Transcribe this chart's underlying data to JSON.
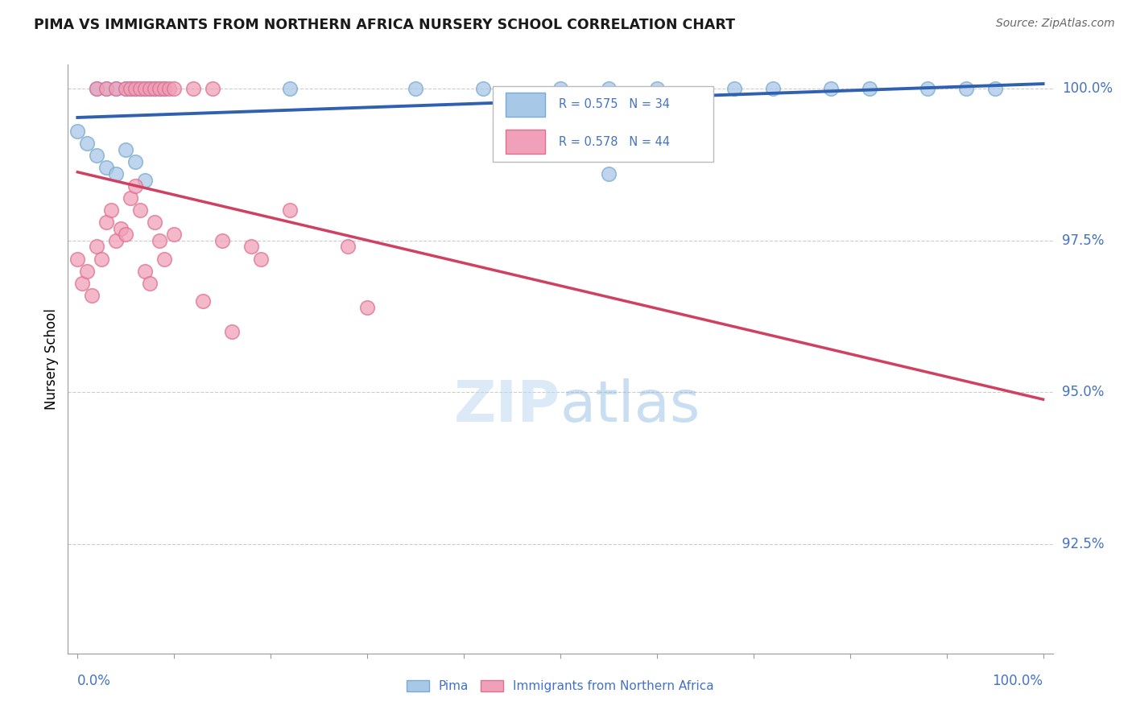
{
  "title": "PIMA VS IMMIGRANTS FROM NORTHERN AFRICA NURSERY SCHOOL CORRELATION CHART",
  "source": "Source: ZipAtlas.com",
  "ylabel": "Nursery School",
  "watermark_zip": "ZIP",
  "watermark_atlas": "atlas",
  "xlim": [
    -0.01,
    1.01
  ],
  "ylim": [
    0.907,
    1.004
  ],
  "yticks": [
    0.925,
    0.95,
    0.975,
    1.0
  ],
  "ytick_labels": [
    "92.5%",
    "95.0%",
    "97.5%",
    "100.0%"
  ],
  "pima_R": 0.575,
  "pima_N": 34,
  "nafrica_R": 0.578,
  "nafrica_N": 44,
  "pima_color": "#a8c8e8",
  "nafrica_color": "#f0a0b8",
  "pima_edge_color": "#7aaad0",
  "nafrica_edge_color": "#e07090",
  "pima_line_color": "#3060b0",
  "nafrica_line_color": "#d04060",
  "legend_color": "#4472c4",
  "text_color": "#1a1a1a",
  "grid_color": "#cccccc",
  "pima_x": [
    0.02,
    0.03,
    0.04,
    0.05,
    0.055,
    0.06,
    0.065,
    0.07,
    0.075,
    0.08,
    0.085,
    0.09,
    0.0,
    0.01,
    0.02,
    0.03,
    0.04,
    0.05,
    0.06,
    0.07,
    0.22,
    0.35,
    0.42,
    0.5,
    0.55,
    0.6,
    0.68,
    0.72,
    0.78,
    0.82,
    0.88,
    0.92,
    0.55,
    0.95
  ],
  "pima_y": [
    1.0,
    1.0,
    1.0,
    1.0,
    1.0,
    1.0,
    1.0,
    1.0,
    1.0,
    1.0,
    1.0,
    1.0,
    0.993,
    0.991,
    0.989,
    0.987,
    0.986,
    0.99,
    0.988,
    0.985,
    1.0,
    1.0,
    1.0,
    1.0,
    1.0,
    1.0,
    1.0,
    1.0,
    1.0,
    1.0,
    1.0,
    1.0,
    0.986,
    1.0
  ],
  "nafrica_x": [
    0.0,
    0.005,
    0.01,
    0.015,
    0.02,
    0.025,
    0.03,
    0.035,
    0.04,
    0.045,
    0.05,
    0.055,
    0.06,
    0.065,
    0.07,
    0.075,
    0.08,
    0.085,
    0.09,
    0.1,
    0.02,
    0.03,
    0.04,
    0.05,
    0.055,
    0.06,
    0.065,
    0.07,
    0.075,
    0.08,
    0.085,
    0.09,
    0.095,
    0.1,
    0.12,
    0.14,
    0.15,
    0.18,
    0.22,
    0.28,
    0.13,
    0.16,
    0.19,
    0.3
  ],
  "nafrica_y": [
    0.972,
    0.968,
    0.97,
    0.966,
    0.974,
    0.972,
    0.978,
    0.98,
    0.975,
    0.977,
    0.976,
    0.982,
    0.984,
    0.98,
    0.97,
    0.968,
    0.978,
    0.975,
    0.972,
    0.976,
    1.0,
    1.0,
    1.0,
    1.0,
    1.0,
    1.0,
    1.0,
    1.0,
    1.0,
    1.0,
    1.0,
    1.0,
    1.0,
    1.0,
    1.0,
    1.0,
    0.975,
    0.974,
    0.98,
    0.974,
    0.965,
    0.96,
    0.972,
    0.964
  ]
}
